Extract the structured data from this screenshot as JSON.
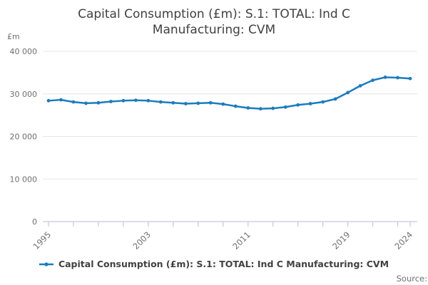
{
  "header": {
    "title_line1": "Capital Consumption (£m): S.1: TOTAL: Ind C",
    "title_line2": "Manufacturing: CVM",
    "unit_label": "£m"
  },
  "legend": {
    "label": "Capital Consumption (£m): S.1: TOTAL: Ind C Manufacturing: CVM"
  },
  "footer": {
    "source_label": "Source:"
  },
  "colors": {
    "line": "#1b7cbe",
    "grid": "#e6e6e6",
    "axis": "#c1cbd9",
    "tick_text": "#707070",
    "title_text": "#414042"
  },
  "chart_data": {
    "type": "line",
    "title": "Capital Consumption (£m): S.1: TOTAL: Ind C Manufacturing: CVM",
    "xlabel": "",
    "ylabel": "£m",
    "ylim": [
      0,
      40000
    ],
    "yticks": [
      0,
      10000,
      20000,
      30000,
      40000
    ],
    "ytick_labels": [
      "0",
      "10 000",
      "20 000",
      "30 000",
      "40 000"
    ],
    "x_range": [
      1995,
      2024
    ],
    "xtick_step": 2,
    "labeled_xticks": [
      1995,
      2003,
      2011,
      2019,
      2024
    ],
    "grid": true,
    "legend_position": "bottom",
    "x": [
      1995,
      1996,
      1997,
      1998,
      1999,
      2000,
      2001,
      2002,
      2003,
      2004,
      2005,
      2006,
      2007,
      2008,
      2009,
      2010,
      2011,
      2012,
      2013,
      2014,
      2015,
      2016,
      2017,
      2018,
      2019,
      2020,
      2021,
      2022,
      2023,
      2024
    ],
    "series": [
      {
        "name": "Capital Consumption (£m): S.1: TOTAL: Ind C Manufacturing: CVM",
        "values": [
          28400,
          28600,
          28100,
          27800,
          27900,
          28200,
          28400,
          28500,
          28400,
          28100,
          27900,
          27700,
          27800,
          27900,
          27600,
          27100,
          26700,
          26500,
          26600,
          26900,
          27400,
          27700,
          28100,
          28800,
          30300,
          31900,
          33200,
          33900,
          33800,
          33600
        ]
      }
    ]
  }
}
